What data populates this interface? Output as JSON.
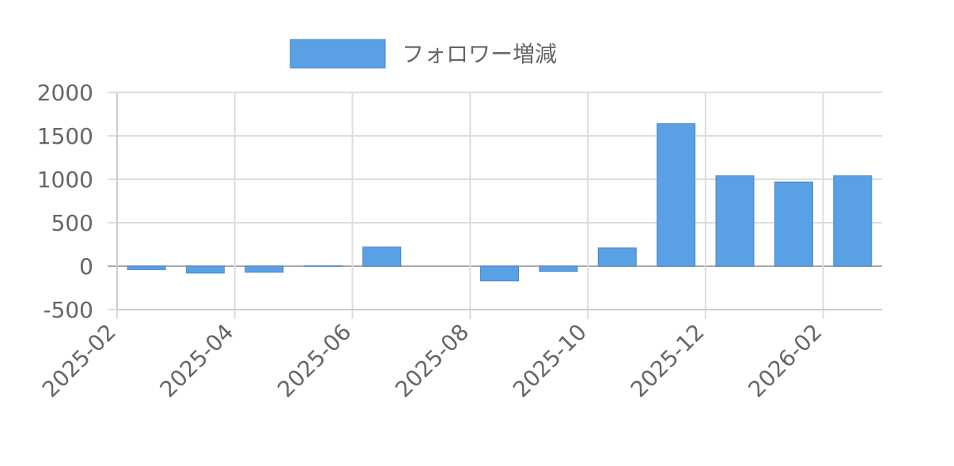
{
  "chart_data": {
    "type": "bar",
    "x": [
      "2025-02",
      "2025-03",
      "2025-04",
      "2025-05",
      "2025-06",
      "2025-07",
      "2025-08",
      "2025-09",
      "2025-10",
      "2025-11",
      "2025-12",
      "2026-01",
      "2026-02"
    ],
    "series": [
      {
        "name": "フォロワー増減",
        "color": "#5aa0e5",
        "values": [
          -40,
          -80,
          -70,
          5,
          220,
          0,
          -170,
          -60,
          210,
          1640,
          1040,
          970,
          1040
        ]
      }
    ],
    "xlim": [
      "2025-02",
      "2026-03"
    ],
    "xticks": [
      "2025-02",
      "2025-04",
      "2025-06",
      "2025-08",
      "2025-10",
      "2025-12",
      "2026-02"
    ],
    "ylim": [
      -500,
      2000
    ],
    "yticks": [
      -500,
      0,
      500,
      1000,
      1500,
      2000
    ],
    "grid": true,
    "legend": "top"
  }
}
